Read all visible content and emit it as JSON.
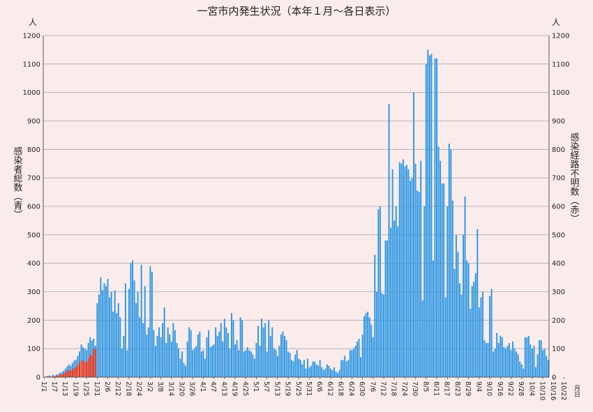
{
  "chart_data": {
    "type": "bar",
    "title": "一宮市内発生状況（本年１月～各日表示）",
    "ylabel_left": "感染者総数（青）",
    "ylabel_right": "感染経路不明数（赤）",
    "unit_left": "人",
    "unit_right": "人",
    "xaxis_caption": "月日",
    "ylim": [
      0,
      1200
    ],
    "y_ticks": [
      0,
      100,
      200,
      300,
      400,
      500,
      600,
      700,
      800,
      900,
      1000,
      1100,
      1200
    ],
    "x_tick_labels": [
      "1/1",
      "1/7",
      "1/13",
      "1/19",
      "1/25",
      "1/31",
      "2/6",
      "2/12",
      "2/18",
      "2/24",
      "3/2",
      "3/8",
      "3/14",
      "3/20",
      "3/26",
      "4/1",
      "4/7",
      "4/13",
      "4/19",
      "4/25",
      "5/1",
      "5/7",
      "5/13",
      "5/19",
      "5/25",
      "5/31",
      "6/6",
      "6/12",
      "6/18",
      "6/24",
      "6/30",
      "7/6",
      "7/12",
      "7/18",
      "7/24",
      "7/30",
      "8/5",
      "8/11",
      "8/17",
      "8/23",
      "8/29",
      "9/4",
      "9/10",
      "9/16",
      "9/22",
      "9/28",
      "10/4",
      "10/10",
      "10/16",
      "10/22"
    ],
    "grid": true,
    "colors": {
      "total": "#2f98e3",
      "unknown": "#e8341c",
      "axis": "#555555",
      "grid": "#a8a8a8"
    },
    "series": [
      {
        "name": "感染者総数（青）",
        "values": [
          1,
          2,
          4,
          6,
          3,
          8,
          5,
          9,
          11,
          15,
          18,
          22,
          30,
          38,
          45,
          40,
          50,
          58,
          62,
          75,
          90,
          115,
          105,
          100,
          95,
          120,
          140,
          128,
          135,
          110,
          260,
          290,
          350,
          305,
          330,
          320,
          345,
          280,
          300,
          230,
          305,
          225,
          260,
          210,
          100,
          145,
          330,
          95,
          310,
          400,
          410,
          340,
          260,
          300,
          210,
          395,
          190,
          320,
          150,
          175,
          390,
          370,
          165,
          110,
          145,
          175,
          140,
          190,
          245,
          120,
          175,
          150,
          125,
          190,
          165,
          120,
          100,
          65,
          90,
          50,
          40,
          125,
          175,
          165,
          95,
          100,
          110,
          150,
          160,
          90,
          95,
          65,
          140,
          165,
          105,
          110,
          115,
          175,
          145,
          160,
          190,
          125,
          205,
          175,
          155,
          100,
          225,
          200,
          115,
          130,
          95,
          210,
          200,
          90,
          95,
          105,
          95,
          90,
          80,
          65,
          120,
          180,
          110,
          205,
          175,
          190,
          90,
          200,
          145,
          175,
          100,
          95,
          75,
          110,
          150,
          160,
          145,
          130,
          90,
          85,
          60,
          55,
          80,
          95,
          65,
          60,
          45,
          60,
          30,
          65,
          35,
          40,
          55,
          55,
          45,
          40,
          60,
          35,
          25,
          30,
          45,
          40,
          30,
          25,
          35,
          20,
          15,
          25,
          60,
          60,
          75,
          55,
          60,
          95,
          95,
          100,
          110,
          125,
          135,
          70,
          150,
          215,
          225,
          230,
          210,
          185,
          140,
          430,
          300,
          590,
          600,
          295,
          290,
          480,
          480,
          960,
          525,
          730,
          550,
          600,
          530,
          755,
          750,
          765,
          740,
          745,
          730,
          690,
          700,
          1000,
          750,
          655,
          650,
          760,
          270,
          600,
          1100,
          1150,
          1130,
          1135,
          410,
          1120,
          1120,
          810,
          760,
          680,
          680,
          280,
          600,
          820,
          800,
          620,
          380,
          500,
          440,
          330,
          290,
          500,
          635,
          410,
          400,
          240,
          320,
          335,
          365,
          520,
          245,
          280,
          300,
          130,
          120,
          120,
          285,
          310,
          90,
          100,
          155,
          120,
          145,
          140,
          105,
          100,
          110,
          120,
          95,
          125,
          100,
          90,
          80,
          55,
          45,
          30,
          140,
          140,
          145,
          115,
          100,
          110,
          35,
          80,
          130,
          130,
          95,
          100,
          75,
          60
        ]
      },
      {
        "name": "感染経路不明数（赤）",
        "values": [
          0,
          1,
          2,
          3,
          1,
          4,
          3,
          5,
          6,
          8,
          10,
          12,
          18,
          22,
          25,
          22,
          28,
          32,
          35,
          42,
          50,
          60,
          58,
          55,
          52,
          65,
          80,
          75,
          100,
          100,
          0,
          0,
          0,
          0,
          0,
          0,
          0,
          0,
          0,
          0,
          0,
          0,
          0,
          0,
          0,
          0,
          0,
          0,
          0,
          0,
          0,
          0,
          0,
          0,
          0,
          0,
          0,
          0,
          0,
          0,
          0,
          0,
          0,
          0,
          0,
          0,
          0,
          0,
          0,
          0,
          0,
          0,
          0,
          0,
          0,
          0,
          0,
          0,
          0,
          0,
          0,
          0,
          0,
          0,
          0,
          0,
          0,
          0,
          0,
          0,
          0,
          0,
          0,
          0,
          0,
          0,
          0,
          0,
          0,
          0,
          0,
          0,
          0,
          0,
          0,
          0,
          0,
          0,
          0,
          0,
          0,
          0,
          0,
          0,
          0,
          0,
          0,
          0,
          0,
          0,
          0,
          0,
          0,
          0,
          0,
          0,
          0,
          0,
          0,
          0,
          0,
          0,
          0,
          0,
          0,
          0,
          0,
          0,
          0,
          0,
          0,
          0,
          0,
          0,
          0,
          0,
          0,
          0,
          0,
          0,
          0,
          0,
          0,
          0,
          0,
          0,
          0,
          0,
          0,
          0,
          0,
          0,
          0,
          0,
          0,
          0,
          0,
          0,
          0,
          0,
          0,
          0,
          0,
          0,
          0,
          0,
          0,
          0,
          0,
          0,
          0,
          0,
          0,
          0,
          0,
          0,
          0,
          0,
          0,
          0,
          0,
          0,
          0,
          0,
          0,
          0,
          0,
          0,
          0,
          0,
          0,
          0,
          0,
          0,
          0,
          0,
          0,
          0,
          0,
          0,
          0,
          0,
          0,
          0,
          0,
          0,
          0,
          0,
          0,
          0,
          0,
          0,
          0,
          0,
          0,
          0,
          0,
          0,
          0,
          0,
          0,
          0,
          0,
          0,
          0,
          0,
          0,
          0,
          0,
          0,
          0,
          0,
          0,
          0,
          0,
          0,
          0,
          0,
          0,
          0,
          0,
          0,
          0,
          0,
          0,
          0,
          0,
          0,
          0,
          0,
          0,
          0,
          0,
          0,
          0,
          0,
          0,
          0,
          0,
          0,
          0,
          0,
          0,
          0,
          0,
          0,
          0,
          0,
          0,
          0,
          0,
          0,
          0,
          0,
          0,
          0,
          0,
          0,
          0,
          0,
          0,
          0,
          0,
          0,
          0,
          0,
          0,
          0,
          0,
          0,
          0
        ]
      }
    ]
  }
}
